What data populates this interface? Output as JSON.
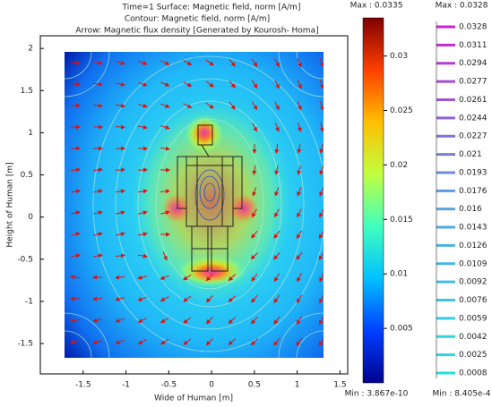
{
  "chart_data": {
    "type": "field",
    "title": "Time=1    Surface: Magnetic field, norm [A/m]",
    "contour_label": "Contour: Magnetic field, norm [A/m]",
    "arrow_label": "Arrow: Magnetic flux density [Generated by Kourosh- Homa]",
    "xlabel": "Wide of Human [m]",
    "ylabel": "Height of Human [m]",
    "xlim": [
      -2.0,
      1.59
    ],
    "ylim": [
      -1.86,
      2.15
    ],
    "xticks": [
      -1.5,
      -1,
      -0.5,
      0,
      0.5,
      1,
      1.5
    ],
    "yticks": [
      -1.5,
      -1,
      -0.5,
      0,
      0.5,
      1,
      1.5,
      2
    ],
    "surface_colorbar": {
      "max": {
        "value": 0.0335,
        "label": "Max : 0.0335"
      },
      "min": {
        "value": 3.867e-10,
        "label": "Min : 3.867e-10"
      },
      "ticks": [
        0.005,
        0.01,
        0.015,
        0.02,
        0.025,
        0.03
      ],
      "colors": [
        "#00008f",
        "#0040ff",
        "#00c0ff",
        "#40ffbf",
        "#c0ff40",
        "#ffbf00",
        "#ff4000",
        "#800000"
      ]
    },
    "contour_legend": {
      "max": {
        "value": 0.0328,
        "label": "Max : 0.0328"
      },
      "min": {
        "value": 0.0008405,
        "label": "Min : 8.405e-4"
      },
      "levels": [
        0.0328,
        0.0311,
        0.0294,
        0.0277,
        0.0261,
        0.0244,
        0.0227,
        0.021,
        0.0193,
        0.0176,
        0.016,
        0.0143,
        0.0126,
        0.0109,
        0.0092,
        0.0076,
        0.0059,
        0.0042,
        0.0025,
        0.0008
      ],
      "colors": [
        "#cc22cc",
        "#5aa0e0",
        "#22e0e0"
      ]
    }
  }
}
